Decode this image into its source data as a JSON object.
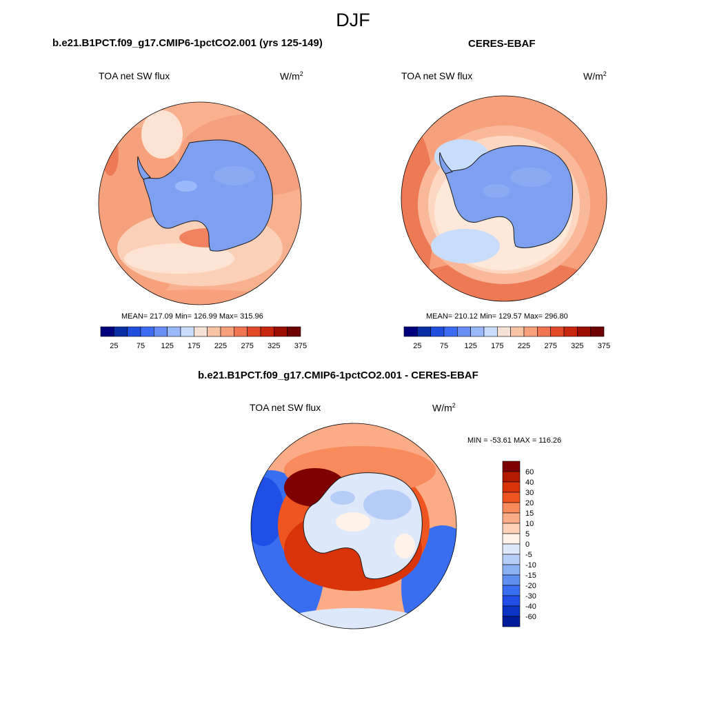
{
  "figure": {
    "season": "DJF"
  },
  "panels": [
    {
      "title": "b.e21.B1PCT.f09_g17.CMIP6-1pctCO2.001 (yrs 125-149)",
      "variable": "TOA net SW flux",
      "units": "W/m",
      "units_exp": "2",
      "stats": "MEAN= 217.09  Min= 126.99  Max= 315.96"
    },
    {
      "title": "CERES-EBAF",
      "variable": "TOA net SW flux",
      "units": "W/m",
      "units_exp": "2",
      "stats": "MEAN= 210.12  Min= 129.57  Max= 296.80"
    },
    {
      "title": "b.e21.B1PCT.f09_g17.CMIP6-1pctCO2.001 - CERES-EBAF",
      "variable": "TOA net SW flux",
      "units": "W/m",
      "units_exp": "2",
      "stats": "MIN = -53.61 MAX = 116.26"
    }
  ],
  "abs_colorbar": {
    "tick_labels": [
      "25",
      "75",
      "125",
      "175",
      "225",
      "275",
      "325",
      "375"
    ],
    "colors": [
      "#00007f",
      "#0a2ea8",
      "#1f4fdc",
      "#3d6cf2",
      "#6b90f5",
      "#9bb8fa",
      "#c8dcfc",
      "#f5e2d4",
      "#f9c3a6",
      "#f7a07c",
      "#f07550",
      "#e44a2a",
      "#c9260e",
      "#9b0d02",
      "#6e0000"
    ]
  },
  "diff_colorbar": {
    "tick_labels": [
      "60",
      "40",
      "30",
      "20",
      "15",
      "10",
      "5",
      "0",
      "-5",
      "-10",
      "-15",
      "-20",
      "-30",
      "-40",
      "-60"
    ],
    "colors_top_to_bottom": [
      "#7f0000",
      "#b21a00",
      "#d9330a",
      "#ef5520",
      "#f88a5c",
      "#fbab86",
      "#fdd2b8",
      "#fff2e8",
      "#dde8fb",
      "#b6cdf7",
      "#8bb0f3",
      "#5f8ff0",
      "#3a6ef0",
      "#1f4fe6",
      "#0b33c4",
      "#001c9a"
    ]
  },
  "colors": {
    "land_blue": "#7fa0f0",
    "ocean_salmon": "#f7a07c",
    "coast_line": "#1a1a1a"
  }
}
